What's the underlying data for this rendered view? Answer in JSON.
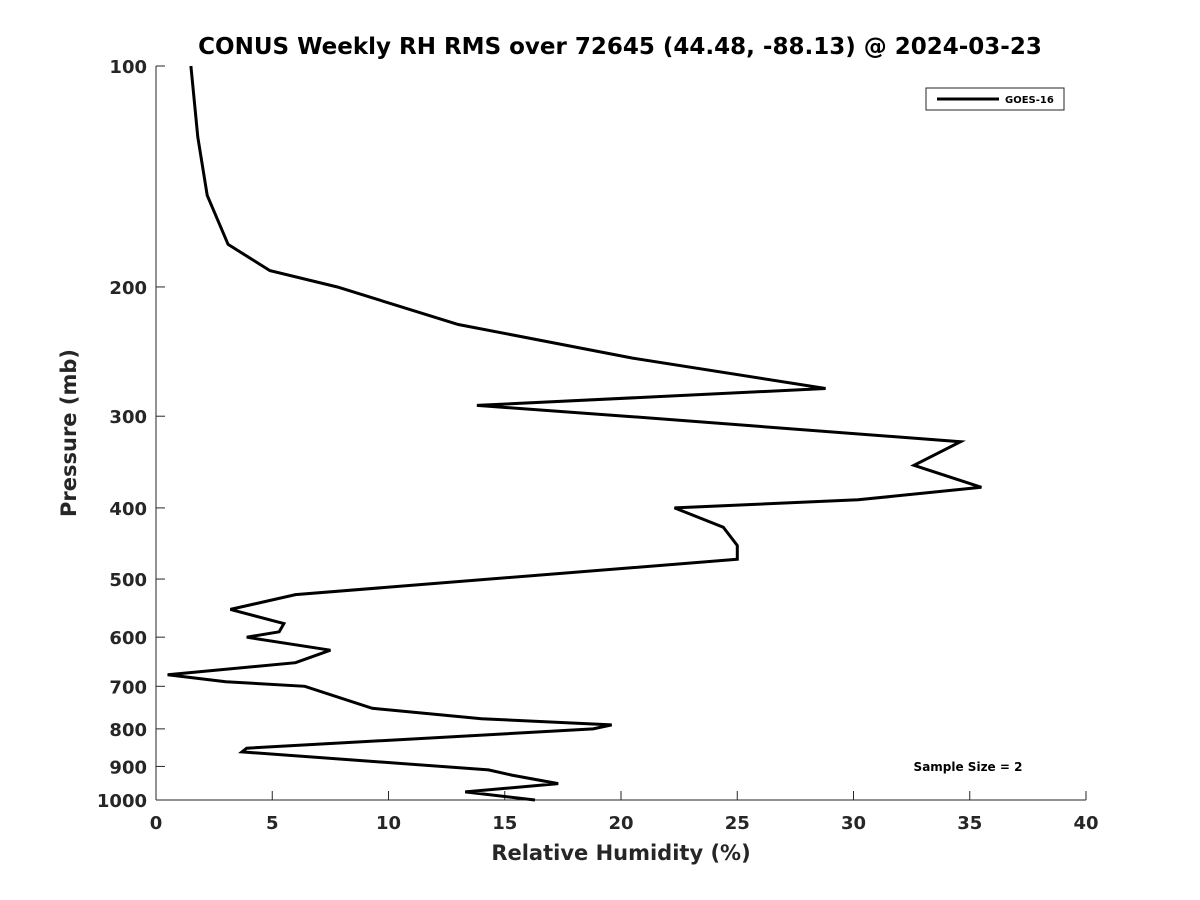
{
  "chart_data": {
    "type": "line",
    "title": "CONUS Weekly RH RMS over 72645 (44.48, -88.13) @ 2024-03-23",
    "xlabel": "Relative Humidity (%)",
    "ylabel": "Pressure (mb)",
    "xlim": [
      0,
      40
    ],
    "ylim": [
      100,
      1000
    ],
    "y_scale": "log",
    "y_reversed": true,
    "grid": false,
    "legend_position": "top-right",
    "x_ticks": [
      0,
      5,
      10,
      15,
      20,
      25,
      30,
      35,
      40
    ],
    "x_tick_labels": [
      "0",
      "5",
      "10",
      "15",
      "20",
      "25",
      "30",
      "35",
      "40"
    ],
    "y_ticks": [
      100,
      200,
      300,
      400,
      500,
      600,
      700,
      800,
      900,
      1000
    ],
    "y_tick_labels": [
      "100",
      "200",
      "300",
      "400",
      "500",
      "600",
      "700",
      "800",
      "900",
      "1000"
    ],
    "annotation": "Sample Size = 2",
    "series": [
      {
        "name": "GOES-16",
        "color": "#000000",
        "points": [
          {
            "x": 1.5,
            "y": 100
          },
          {
            "x": 1.8,
            "y": 125
          },
          {
            "x": 2.2,
            "y": 150
          },
          {
            "x": 3.1,
            "y": 175
          },
          {
            "x": 4.9,
            "y": 190
          },
          {
            "x": 7.8,
            "y": 200
          },
          {
            "x": 13.0,
            "y": 225
          },
          {
            "x": 20.5,
            "y": 250
          },
          {
            "x": 28.8,
            "y": 275
          },
          {
            "x": 13.8,
            "y": 290
          },
          {
            "x": 20.2,
            "y": 300
          },
          {
            "x": 34.6,
            "y": 325
          },
          {
            "x": 32.6,
            "y": 350
          },
          {
            "x": 35.5,
            "y": 375
          },
          {
            "x": 30.2,
            "y": 390
          },
          {
            "x": 22.3,
            "y": 400
          },
          {
            "x": 24.4,
            "y": 425
          },
          {
            "x": 25.0,
            "y": 450
          },
          {
            "x": 25.0,
            "y": 470
          },
          {
            "x": 6.0,
            "y": 525
          },
          {
            "x": 3.2,
            "y": 550
          },
          {
            "x": 5.5,
            "y": 575
          },
          {
            "x": 5.3,
            "y": 590
          },
          {
            "x": 3.9,
            "y": 600
          },
          {
            "x": 7.5,
            "y": 625
          },
          {
            "x": 6.0,
            "y": 650
          },
          {
            "x": 0.5,
            "y": 675
          },
          {
            "x": 3.0,
            "y": 690
          },
          {
            "x": 6.4,
            "y": 700
          },
          {
            "x": 9.3,
            "y": 750
          },
          {
            "x": 14.0,
            "y": 775
          },
          {
            "x": 19.6,
            "y": 790
          },
          {
            "x": 18.8,
            "y": 800
          },
          {
            "x": 3.9,
            "y": 850
          },
          {
            "x": 3.7,
            "y": 860
          },
          {
            "x": 14.3,
            "y": 910
          },
          {
            "x": 15.3,
            "y": 925
          },
          {
            "x": 17.3,
            "y": 950
          },
          {
            "x": 13.3,
            "y": 975
          },
          {
            "x": 16.3,
            "y": 1000
          }
        ]
      }
    ]
  }
}
